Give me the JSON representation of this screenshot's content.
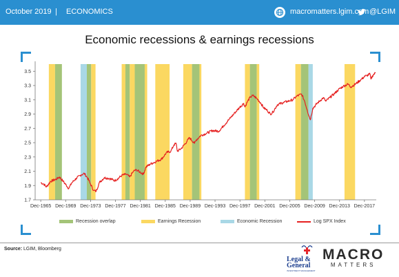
{
  "header": {
    "date": "October 2019",
    "separator": "|",
    "section": "ECONOMICS",
    "website": "macromatters.lgim.com",
    "twitter": "@LGIM",
    "icons": [
      "globe-icon",
      "twitter-bird-icon"
    ]
  },
  "chart_data": {
    "type": "line",
    "title": "Economic recessions & earnings recessions",
    "xlabel": "",
    "ylabel": "",
    "xlim": [
      1965,
      2019.8
    ],
    "ylim": [
      1.7,
      3.6
    ],
    "yticks": [
      1.7,
      1.9,
      2.1,
      2.3,
      2.5,
      2.7,
      2.9,
      3.1,
      3.3,
      3.5
    ],
    "ytick_labels": [
      "1.7",
      "1.9",
      "2.1",
      "2.3",
      "2.5",
      "2.7",
      "2.9",
      "3.1",
      "3.3",
      "3.5"
    ],
    "xtick_labels": [
      "Dec-1965",
      "Dec-1969",
      "Dec-1973",
      "Dec-1977",
      "Dec-1981",
      "Dec-1985",
      "Dec-1989",
      "Dec-1993",
      "Dec-1997",
      "Dec-2001",
      "Dec-2005",
      "Dec-2009",
      "Dec-2013",
      "Dec-2017"
    ],
    "xtick_values": [
      1965.9,
      1969.9,
      1973.9,
      1977.9,
      1981.9,
      1985.9,
      1989.9,
      1993.9,
      1997.9,
      2001.9,
      2005.9,
      2009.9,
      2013.9,
      2017.9
    ],
    "grid": false,
    "legend_position": "bottom",
    "bands": [
      {
        "type": "earnings",
        "start": 1967.2,
        "end": 1968.2
      },
      {
        "type": "overlap",
        "start": 1968.2,
        "end": 1969.3
      },
      {
        "type": "economic",
        "start": 1972.3,
        "end": 1973.3
      },
      {
        "type": "overlap",
        "start": 1973.3,
        "end": 1974.0
      },
      {
        "type": "earnings",
        "start": 1974.0,
        "end": 1974.7
      },
      {
        "type": "earnings",
        "start": 1978.9,
        "end": 1979.5
      },
      {
        "type": "overlap",
        "start": 1979.5,
        "end": 1980.2
      },
      {
        "type": "earnings",
        "start": 1980.2,
        "end": 1981.0
      },
      {
        "type": "overlap",
        "start": 1981.0,
        "end": 1982.6
      },
      {
        "type": "earnings",
        "start": 1982.6,
        "end": 1983.0
      },
      {
        "type": "earnings",
        "start": 1984.3,
        "end": 1986.6
      },
      {
        "type": "earnings",
        "start": 1988.8,
        "end": 1990.2
      },
      {
        "type": "overlap",
        "start": 1990.2,
        "end": 1991.4
      },
      {
        "type": "earnings",
        "start": 1991.4,
        "end": 1991.7
      },
      {
        "type": "earnings",
        "start": 1998.7,
        "end": 1999.5
      },
      {
        "type": "overlap",
        "start": 1999.5,
        "end": 2000.6
      },
      {
        "type": "earnings",
        "start": 2000.6,
        "end": 2001.0
      },
      {
        "type": "earnings",
        "start": 2006.8,
        "end": 2007.7
      },
      {
        "type": "overlap",
        "start": 2007.7,
        "end": 2008.9
      },
      {
        "type": "economic",
        "start": 2008.9,
        "end": 2009.6
      },
      {
        "type": "earnings",
        "start": 2014.7,
        "end": 2016.4
      }
    ],
    "band_colors": {
      "overlap": "#a4c478",
      "earnings": "#fbd861",
      "economic": "#a9d8e6"
    },
    "series": [
      {
        "name": "Log SPX Index",
        "color": "#e51f1f",
        "x": [
          1965.9,
          1966.4,
          1966.8,
          1967.5,
          1968.4,
          1968.9,
          1969.5,
          1970.4,
          1970.9,
          1971.6,
          1972.4,
          1972.9,
          1973.4,
          1973.9,
          1974.4,
          1974.8,
          1975.3,
          1976.1,
          1976.9,
          1977.8,
          1978.2,
          1978.9,
          1979.6,
          1980.2,
          1980.8,
          1981.3,
          1981.8,
          1982.4,
          1982.8,
          1983.5,
          1984.5,
          1985.3,
          1986.1,
          1986.8,
          1987.3,
          1987.65,
          1987.85,
          1988.5,
          1989.4,
          1989.8,
          1990.6,
          1990.9,
          1991.6,
          1992.5,
          1993.5,
          1994.5,
          1995.3,
          1996.2,
          1997.1,
          1997.8,
          1998.5,
          1998.7,
          1999.2,
          1999.6,
          2000.0,
          2000.6,
          2001.2,
          2001.7,
          2002.3,
          2002.8,
          2003.2,
          2003.9,
          2004.8,
          2005.6,
          2006.4,
          2007.0,
          2007.8,
          2008.3,
          2008.7,
          2009.2,
          2009.6,
          2010.3,
          2010.8,
          2011.3,
          2011.7,
          2012.3,
          2013.0,
          2013.7,
          2014.5,
          2015.3,
          2015.7,
          2016.1,
          2016.6,
          2017.3,
          2018.0,
          2018.3,
          2018.8,
          2018.95,
          2019.3,
          2019.7
        ],
        "values": [
          1.94,
          1.92,
          1.88,
          1.96,
          1.99,
          2.02,
          1.96,
          1.86,
          1.94,
          2.0,
          2.05,
          2.07,
          2.01,
          1.92,
          1.83,
          1.82,
          1.94,
          2.01,
          2.0,
          1.97,
          1.99,
          2.04,
          2.06,
          2.02,
          2.1,
          2.12,
          2.09,
          2.06,
          2.16,
          2.2,
          2.24,
          2.27,
          2.36,
          2.38,
          2.47,
          2.49,
          2.38,
          2.42,
          2.52,
          2.57,
          2.49,
          2.54,
          2.6,
          2.63,
          2.67,
          2.66,
          2.74,
          2.83,
          2.92,
          2.99,
          3.05,
          3.0,
          3.09,
          3.14,
          3.16,
          3.12,
          3.06,
          2.99,
          2.95,
          2.9,
          2.93,
          3.03,
          3.06,
          3.08,
          3.1,
          3.15,
          3.18,
          3.08,
          2.96,
          2.82,
          2.98,
          3.05,
          3.09,
          3.13,
          3.08,
          3.13,
          3.18,
          3.24,
          3.29,
          3.32,
          3.28,
          3.3,
          3.33,
          3.38,
          3.43,
          3.44,
          3.46,
          3.39,
          3.45,
          3.48
        ]
      }
    ],
    "legend": [
      {
        "label": "Recession overlap",
        "key": "overlap"
      },
      {
        "label": "Earnings Recession",
        "key": "earnings"
      },
      {
        "label": "Economic Recession",
        "key": "economic"
      },
      {
        "label": "Log SPX Index",
        "key": "line"
      }
    ]
  },
  "footer": {
    "source_label": "Source:",
    "source_text": "LGIM, Bloomberg",
    "logo_lg_line1": "Legal &",
    "logo_lg_line2": "General",
    "logo_lg_line3": "INVESTMENT MANAGEMENT",
    "logo_macro": "MACRO",
    "logo_matters": "MATTERS"
  }
}
